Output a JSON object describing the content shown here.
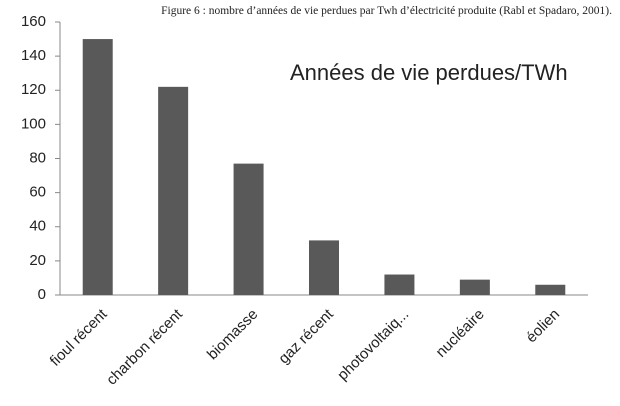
{
  "chart_data": {
    "type": "bar",
    "caption": "Figure 6 : nombre d’années de vie perdues par Twh d’électricité produite (Rabl et Spadaro, 2001).",
    "title": "Années de vie perdues/TWh",
    "categories": [
      "fioul récent",
      "charbon récent",
      "biomasse",
      "gaz récent",
      "photovoltaiq...",
      "nucléaire",
      "éolien"
    ],
    "values": [
      150,
      122,
      77,
      32,
      12,
      9,
      6
    ],
    "color": "#595959",
    "ylim": [
      0,
      160
    ],
    "yticks": [
      0,
      20,
      40,
      60,
      80,
      100,
      120,
      140,
      160
    ],
    "grid": false
  }
}
